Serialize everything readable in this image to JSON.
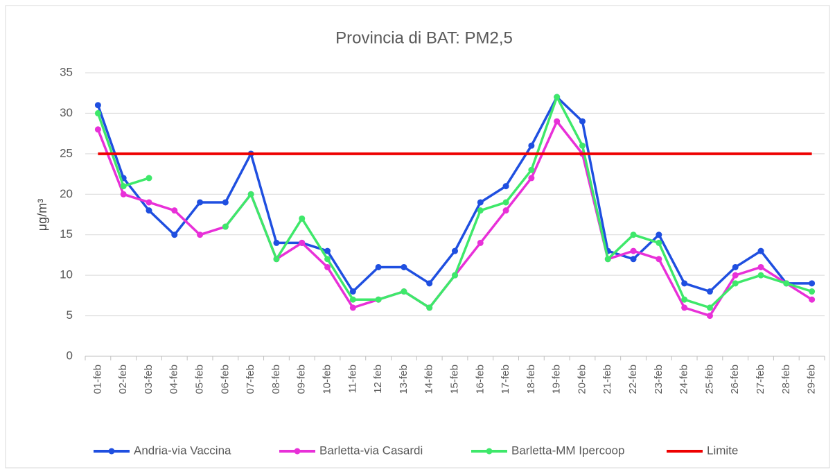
{
  "chart_data": {
    "type": "line",
    "title": "Provincia di BAT: PM2,5",
    "y_label": "μg/m³",
    "categories": [
      "01-feb",
      "02-feb",
      "03-feb",
      "04-feb",
      "05-feb",
      "06-feb",
      "07-feb",
      "08-feb",
      "09-feb",
      "10-feb",
      "11-feb",
      "12 feb",
      "13-feb",
      "14-feb",
      "15-feb",
      "16-feb",
      "17-feb",
      "18-feb",
      "19-feb",
      "20-feb",
      "21-feb",
      "22-feb",
      "23-feb",
      "24-feb",
      "25-feb",
      "26-feb",
      "27-feb",
      "28-feb",
      "29-feb"
    ],
    "series": [
      {
        "name": "Andria-via Vaccina",
        "color": "#1f4fe0",
        "markers": true,
        "values": [
          31,
          22,
          18,
          15,
          19,
          19,
          25,
          14,
          14,
          13,
          8,
          11,
          11,
          9,
          13,
          19,
          21,
          26,
          32,
          29,
          13,
          12,
          15,
          9,
          8,
          11,
          13,
          9,
          9
        ]
      },
      {
        "name": "Barletta-via Casardi",
        "color": "#e830d8",
        "markers": true,
        "values": [
          28,
          20,
          19,
          18,
          15,
          16,
          20,
          12,
          14,
          11,
          6,
          7,
          8,
          6,
          10,
          14,
          18,
          22,
          29,
          25,
          12,
          13,
          12,
          6,
          5,
          10,
          11,
          9,
          7
        ]
      },
      {
        "name": "Barletta-MM Ipercoop",
        "color": "#3ee86a",
        "markers": true,
        "values": [
          30,
          21,
          22,
          null,
          null,
          16,
          20,
          12,
          17,
          12,
          7,
          7,
          8,
          6,
          10,
          18,
          19,
          23,
          32,
          26,
          12,
          15,
          14,
          7,
          6,
          9,
          10,
          9,
          8
        ]
      },
      {
        "name": "Limite",
        "color": "#ee0000",
        "markers": false,
        "values": [
          25,
          25,
          25,
          25,
          25,
          25,
          25,
          25,
          25,
          25,
          25,
          25,
          25,
          25,
          25,
          25,
          25,
          25,
          25,
          25,
          25,
          25,
          25,
          25,
          25,
          25,
          25,
          25,
          25
        ]
      }
    ],
    "ylim": [
      0,
      35
    ],
    "yticks": [
      0,
      5,
      10,
      15,
      20,
      25,
      30,
      35
    ],
    "grid": true,
    "legend": "bottom"
  }
}
